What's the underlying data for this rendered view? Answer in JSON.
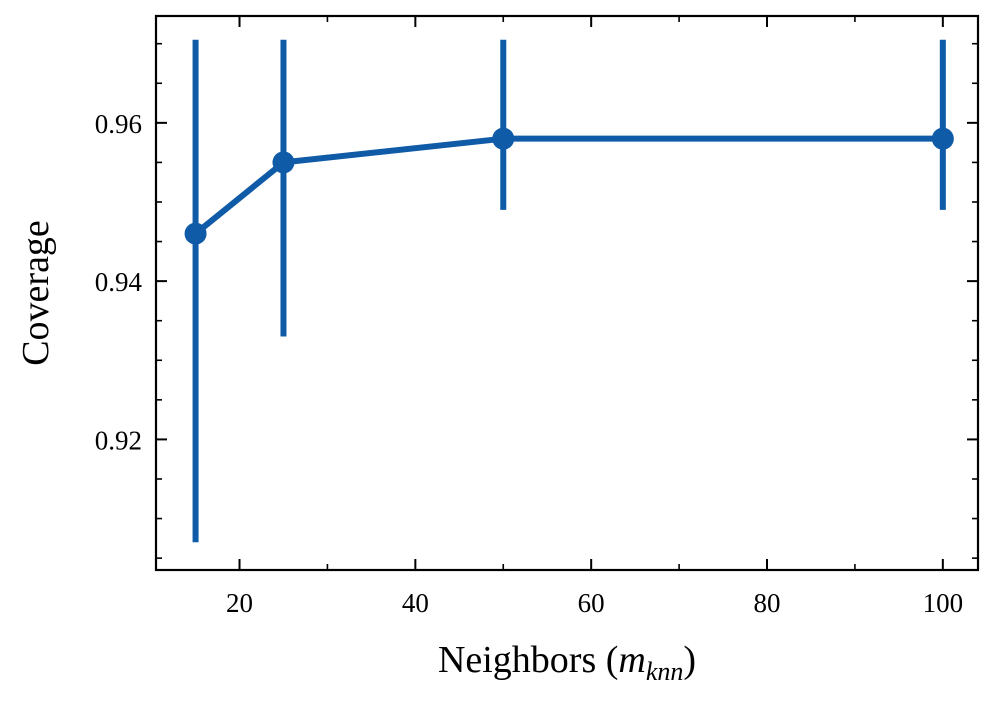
{
  "chart_data": {
    "type": "line",
    "xlabel": {
      "prefix": "Neighbors (",
      "var": "m",
      "sub": "knn",
      "suffix": ")"
    },
    "ylabel": "Coverage",
    "xlim": [
      10.5,
      104
    ],
    "ylim": [
      0.9035,
      0.9735
    ],
    "x_ticks": [
      20,
      40,
      60,
      80,
      100
    ],
    "x_tick_labels": [
      "20",
      "40",
      "60",
      "80",
      "100"
    ],
    "y_ticks": [
      0.92,
      0.94,
      0.96
    ],
    "y_tick_labels": [
      "0.92",
      "0.94",
      "0.96"
    ],
    "grid": false,
    "series": [
      {
        "color": "#0f5ba7",
        "x": [
          15,
          25,
          50,
          100
        ],
        "y": [
          0.946,
          0.955,
          0.958,
          0.958
        ],
        "err_low": [
          0.907,
          0.933,
          0.949,
          0.949
        ],
        "err_high": [
          0.9705,
          0.9705,
          0.9705,
          0.9705
        ]
      }
    ]
  }
}
